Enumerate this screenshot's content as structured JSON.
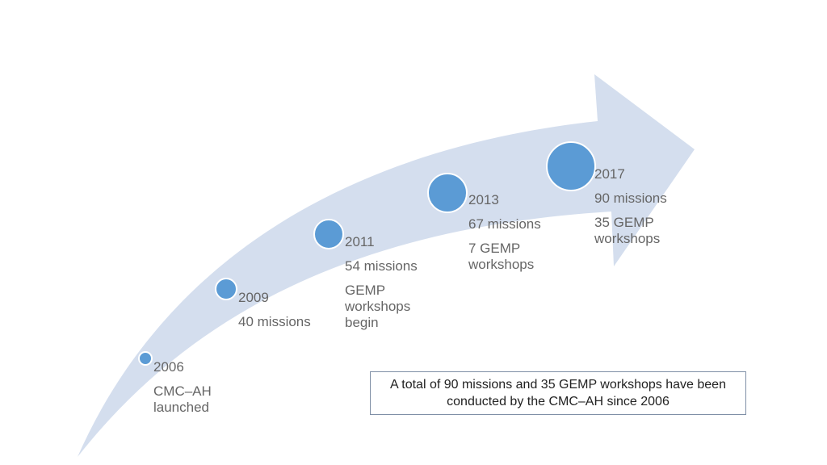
{
  "timeline": {
    "milestones": [
      {
        "year": "2006",
        "lines": [
          "CMC–AH launched"
        ]
      },
      {
        "year": "2009",
        "lines": [
          "40 missions"
        ]
      },
      {
        "year": "2011",
        "lines": [
          "54 missions",
          "GEMP workshops begin"
        ]
      },
      {
        "year": "2013",
        "lines": [
          "67 missions",
          "7 GEMP workshops"
        ]
      },
      {
        "year": "2017",
        "lines": [
          "90 missions",
          "35 GEMP workshops"
        ]
      }
    ]
  },
  "summary": {
    "text": "A total of 90 missions and 35 GEMP workshops have been conducted by the CMC–AH since 2006"
  },
  "colors": {
    "arrow": "#d4deee",
    "dot": "#5b9bd5",
    "text": "#666666",
    "box_border": "#7f8fa6"
  }
}
